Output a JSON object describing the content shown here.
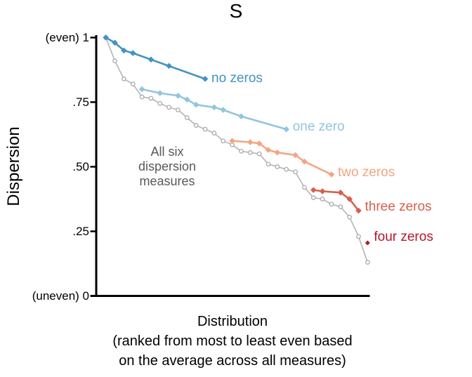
{
  "title": "S",
  "y_axis": {
    "label": "Dispersion",
    "ticks": [
      {
        "label": "(even) 1",
        "value": 1
      },
      {
        "label": ".75",
        "value": 0.75
      },
      {
        "label": ".50",
        "value": 0.5
      },
      {
        "label": ".25",
        "value": 0.25
      },
      {
        "label": "(uneven) 0",
        "value": 0
      }
    ]
  },
  "x_axis": {
    "label": "Distribution",
    "sublabel_line1": "(ranked from most to least even based",
    "sublabel_line2": "on the average across all measures)"
  },
  "annotation": {
    "line1": "All six",
    "line2": "dispersion",
    "line3": "measures"
  },
  "colors": {
    "no_zeros": "#4393c3",
    "one_zero": "#92c5de",
    "two_zeros": "#f4a582",
    "three_zeros": "#d6604d",
    "four_zeros": "#b2182b",
    "all_measures_line": "#b4b4b4",
    "all_measures_marker": "#a8a8a8",
    "annotation_text": "#595959",
    "axis": "#000000"
  },
  "chart_data": {
    "type": "line",
    "title": "S",
    "ylabel": "Dispersion",
    "xlabel": "Distribution (ranked from most to least even based on the average across all measures)",
    "xlim": [
      1,
      30
    ],
    "ylim": [
      0,
      1
    ],
    "grid": false,
    "legend": "inline-end-labels",
    "series": [
      {
        "name": "All six dispersion measures",
        "label": null,
        "color": "#b4b4b4",
        "marker": "circle-open",
        "x": [
          1,
          2,
          3,
          4,
          5,
          6,
          7,
          8,
          9,
          10,
          11,
          12,
          13,
          14,
          15,
          16,
          17,
          18,
          19,
          20,
          21,
          22,
          23,
          24,
          25,
          26,
          27,
          28,
          29,
          30
        ],
        "values": [
          1.0,
          0.91,
          0.84,
          0.82,
          0.77,
          0.765,
          0.745,
          0.73,
          0.72,
          0.69,
          0.66,
          0.645,
          0.63,
          0.6,
          0.585,
          0.56,
          0.555,
          0.55,
          0.51,
          0.5,
          0.49,
          0.48,
          0.42,
          0.38,
          0.375,
          0.355,
          0.345,
          0.305,
          0.23,
          0.13
        ]
      },
      {
        "name": "no zeros",
        "label": "no zeros",
        "color": "#4393c3",
        "marker": "diamond",
        "label_dy": 0,
        "x": [
          1,
          2,
          3,
          4,
          6,
          8,
          12
        ],
        "values": [
          1.0,
          0.98,
          0.95,
          0.94,
          0.915,
          0.89,
          0.84
        ]
      },
      {
        "name": "one zero",
        "label": "one zero",
        "color": "#92c5de",
        "marker": "diamond",
        "label_dy": -3,
        "x": [
          5,
          7,
          9,
          10,
          11,
          13,
          14,
          16,
          21
        ],
        "values": [
          0.8,
          0.785,
          0.775,
          0.76,
          0.74,
          0.73,
          0.72,
          0.695,
          0.645
        ]
      },
      {
        "name": "two zeros",
        "label": "two zeros",
        "color": "#f4a582",
        "marker": "diamond",
        "label_dy": -3,
        "x": [
          15,
          17,
          18,
          19,
          20,
          22,
          23,
          26
        ],
        "values": [
          0.6,
          0.595,
          0.59,
          0.565,
          0.555,
          0.545,
          0.52,
          0.47
        ]
      },
      {
        "name": "three zeros",
        "label": "three zeros",
        "color": "#d6604d",
        "marker": "diamond",
        "label_dy": -5,
        "x": [
          24,
          25,
          27,
          28,
          29
        ],
        "values": [
          0.41,
          0.405,
          0.4,
          0.375,
          0.33
        ]
      },
      {
        "name": "four zeros",
        "label": "four zeros",
        "color": "#b2182b",
        "marker": "diamond",
        "marker_size": 3.5,
        "label_dy": -8,
        "x": [
          30
        ],
        "values": [
          0.205
        ]
      }
    ]
  }
}
